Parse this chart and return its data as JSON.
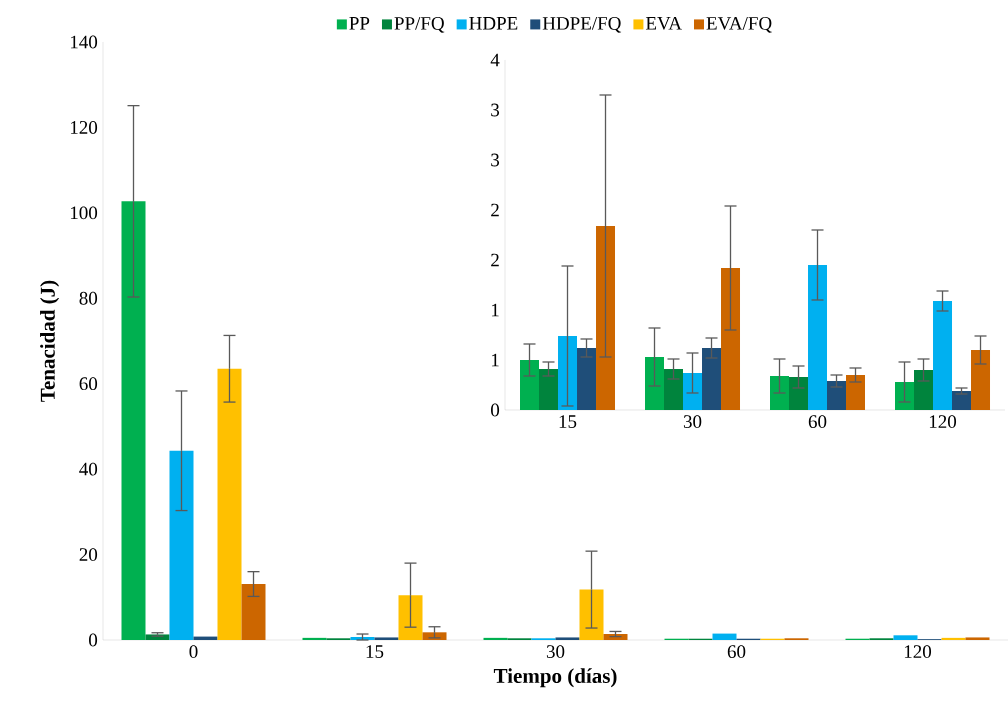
{
  "chart_data": [
    {
      "type": "bar",
      "xlabel": "Tiempo (días)",
      "ylabel": "Tenacidad (J)",
      "categories": [
        "0",
        "15",
        "30",
        "60",
        "120"
      ],
      "ylim": [
        0,
        140
      ],
      "yticks": [
        0,
        20,
        40,
        60,
        80,
        100,
        120,
        140
      ],
      "legend": "top",
      "grid": false,
      "series": [
        {
          "name": "PP",
          "color": "#00b050",
          "values": [
            102.7,
            0.5,
            0.5,
            0.3,
            0.3
          ],
          "errors": [
            22.4,
            null,
            null,
            null,
            null
          ]
        },
        {
          "name": "PP/FQ",
          "color": "#00843d",
          "values": [
            1.3,
            0.4,
            0.4,
            0.3,
            0.4
          ],
          "errors": [
            0.4,
            null,
            null,
            null,
            null
          ]
        },
        {
          "name": "HDPE",
          "color": "#00b0f0",
          "values": [
            44.3,
            0.7,
            0.4,
            1.5,
            1.1
          ],
          "errors": [
            14,
            0.7,
            null,
            null,
            null
          ]
        },
        {
          "name": "HDPE/FQ",
          "color": "#1f4e79",
          "values": [
            0.8,
            0.6,
            0.6,
            0.3,
            0.2
          ],
          "errors": [
            null,
            null,
            null,
            null,
            null
          ]
        },
        {
          "name": "EVA",
          "color": "#ffc000",
          "values": [
            63.5,
            10.5,
            11.8,
            0.3,
            0.5
          ],
          "errors": [
            7.8,
            7.5,
            9,
            null,
            null
          ]
        },
        {
          "name": "EVA/FQ",
          "color": "#cc6600",
          "values": [
            13.1,
            1.8,
            1.4,
            0.4,
            0.6
          ],
          "errors": [
            2.9,
            1.3,
            0.6,
            null,
            null
          ]
        }
      ]
    },
    {
      "type": "bar",
      "categories": [
        "15",
        "30",
        "60",
        "120"
      ],
      "ylim": [
        0,
        3.5
      ],
      "yticks": [
        0,
        {
          "value": 0.5,
          "label": "1"
        },
        {
          "value": 1,
          "label": "1"
        },
        {
          "value": 1.5,
          "label": "2"
        },
        {
          "value": 2,
          "label": "2"
        },
        {
          "value": 2.5,
          "label": "3"
        },
        {
          "value": 3,
          "label": "3"
        },
        {
          "value": 3.5,
          "label": "4"
        }
      ],
      "grid": false,
      "series": [
        {
          "color": "#00b050",
          "values": [
            0.5,
            0.53,
            0.34,
            0.28
          ],
          "errors": [
            0.16,
            0.29,
            0.17,
            0.2
          ]
        },
        {
          "color": "#00843d",
          "values": [
            0.41,
            0.41,
            0.33,
            0.4
          ],
          "errors": [
            0.07,
            0.1,
            0.11,
            0.11
          ]
        },
        {
          "color": "#00b0f0",
          "values": [
            0.74,
            0.37,
            1.45,
            1.09
          ],
          "errors": [
            0.7,
            0.2,
            0.35,
            0.1
          ]
        },
        {
          "color": "#1f4e79",
          "values": [
            0.62,
            0.62,
            0.29,
            0.19
          ],
          "errors": [
            0.09,
            0.1,
            0.06,
            0.03
          ]
        },
        {
          "color": "#cc6600",
          "values": [
            1.84,
            1.42,
            0.35,
            0.6
          ],
          "errors": [
            1.31,
            0.62,
            0.07,
            0.14
          ]
        }
      ]
    }
  ]
}
